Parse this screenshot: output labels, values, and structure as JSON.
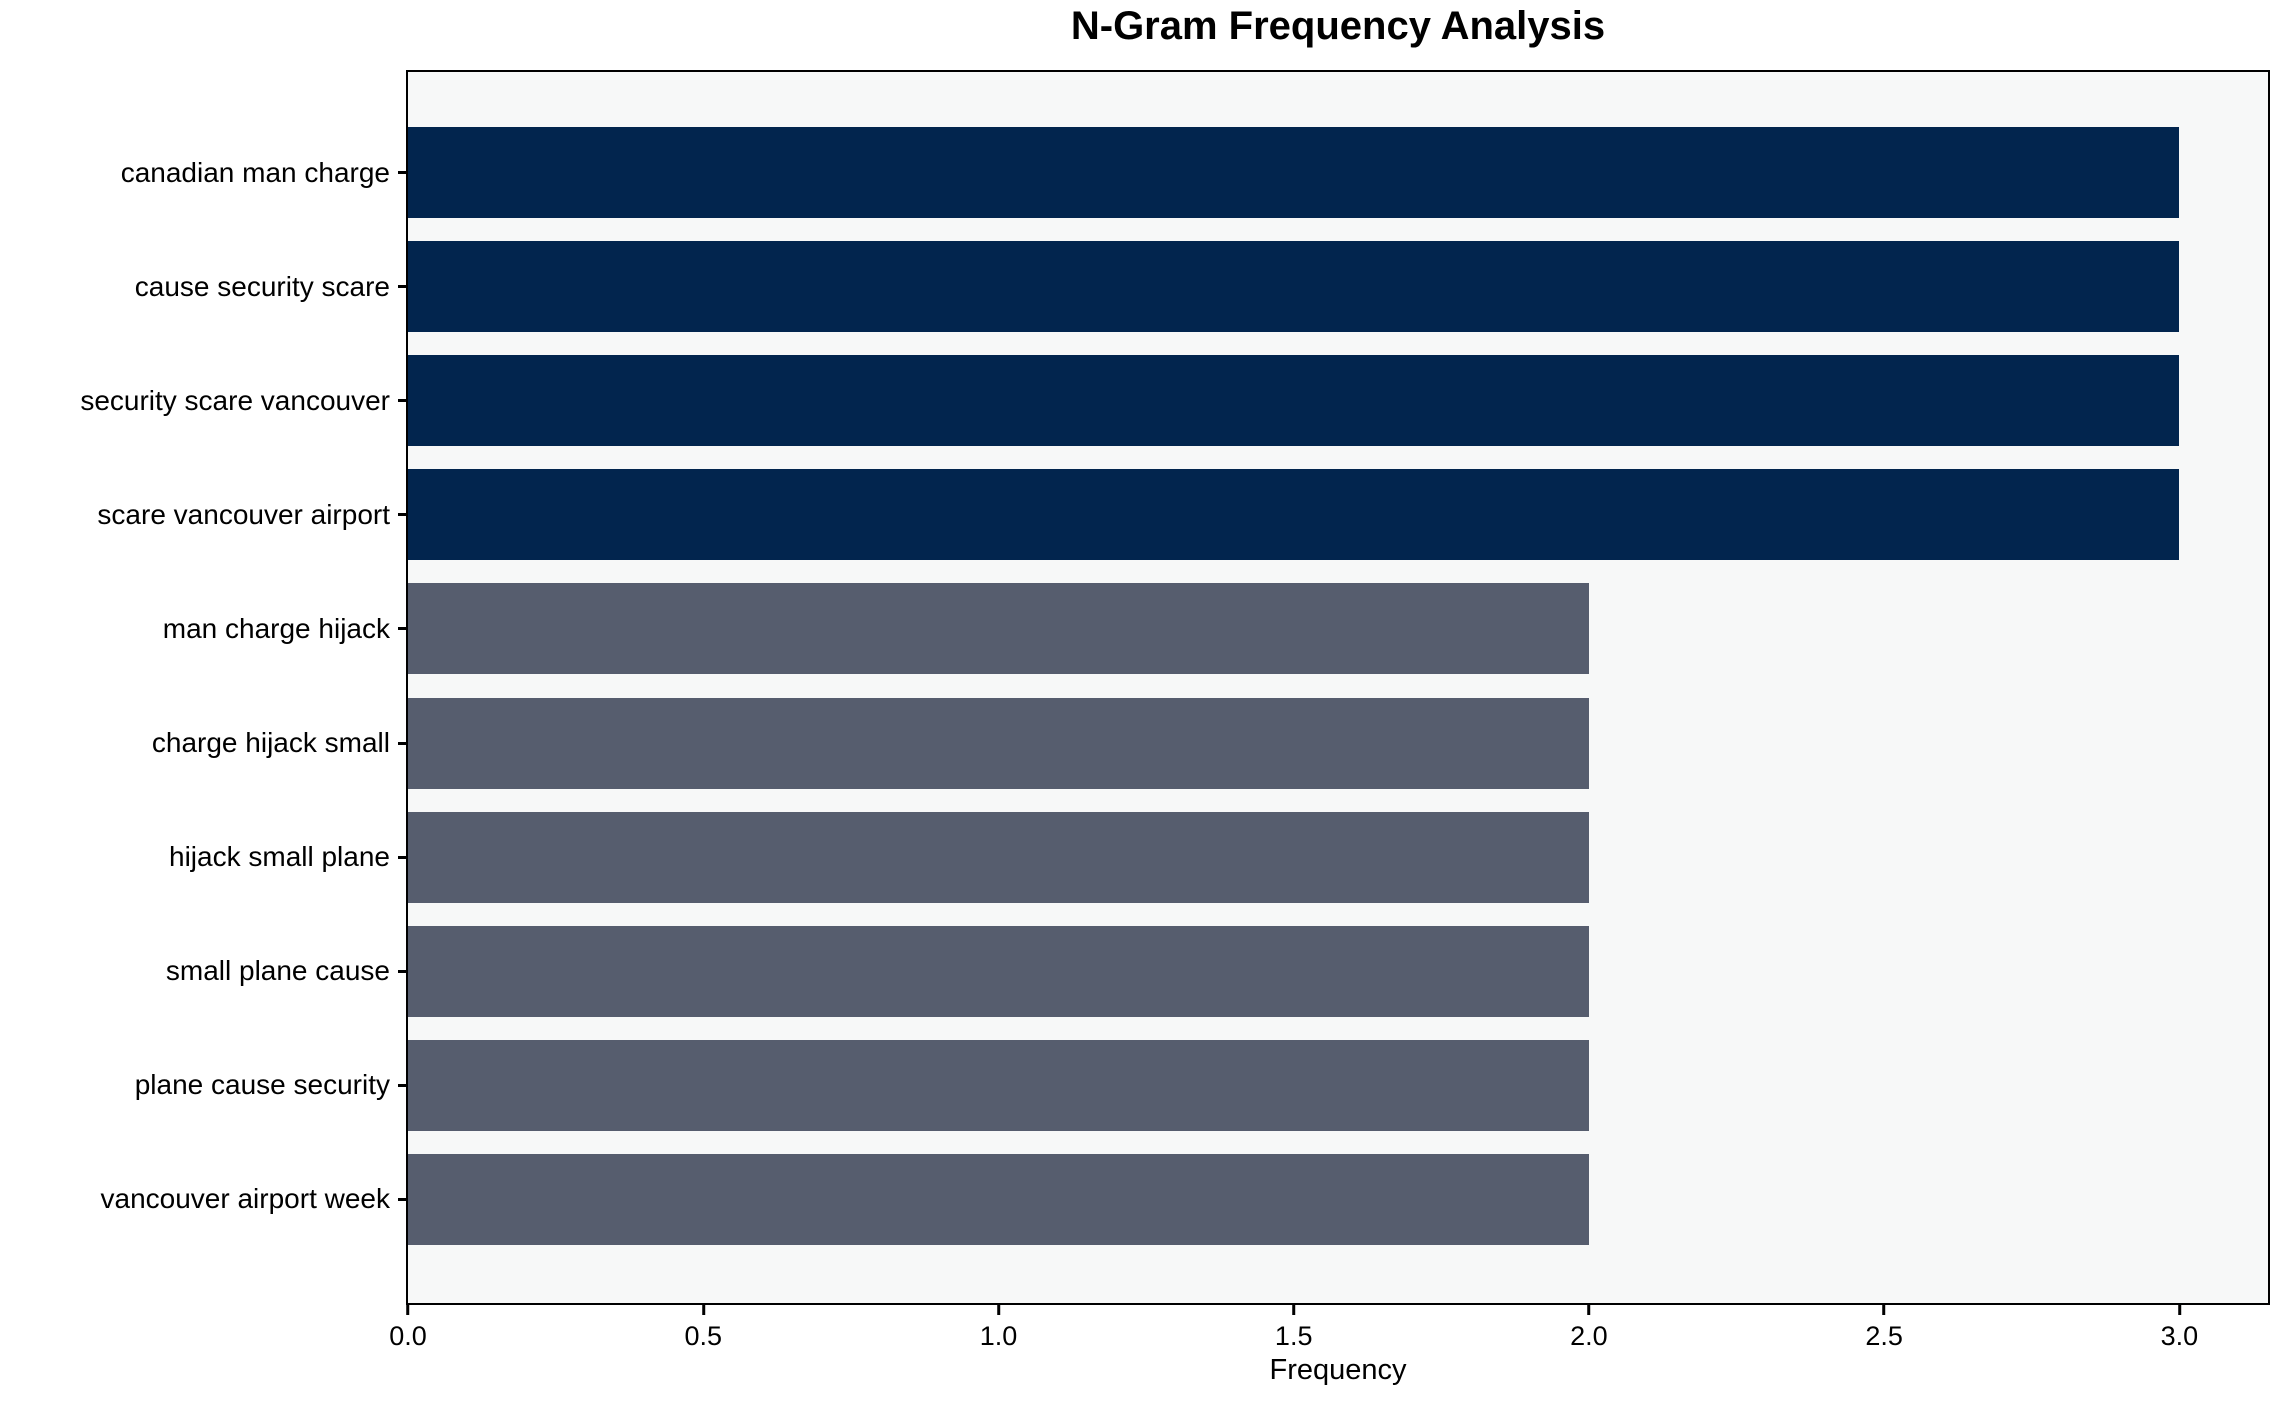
{
  "figure": {
    "background_color": "#ffffff",
    "plot_background_color": "#f7f8f8",
    "spine_color": "#000000",
    "text_color": "#000000"
  },
  "chart_data": {
    "type": "bar",
    "orientation": "horizontal",
    "title": "N-Gram Frequency Analysis",
    "xlabel": "Frequency",
    "ylabel": "",
    "categories": [
      "canadian man charge",
      "cause security scare",
      "security scare vancouver",
      "scare vancouver airport",
      "man charge hijack",
      "charge hijack small",
      "hijack small plane",
      "small plane cause",
      "plane cause security",
      "vancouver airport week"
    ],
    "values": [
      3,
      3,
      3,
      3,
      2,
      2,
      2,
      2,
      2,
      2
    ],
    "bar_colors": [
      "#02254e",
      "#02254e",
      "#02254e",
      "#02254e",
      "#565d6e",
      "#565d6e",
      "#565d6e",
      "#565d6e",
      "#565d6e",
      "#565d6e"
    ],
    "xlim": [
      0,
      3.15
    ],
    "x_ticks": [
      0.0,
      0.5,
      1.0,
      1.5,
      2.0,
      2.5,
      3.0
    ],
    "x_tick_labels": [
      "0.0",
      "0.5",
      "1.0",
      "1.5",
      "2.0",
      "2.5",
      "3.0"
    ],
    "grid": false,
    "legend": "none"
  }
}
